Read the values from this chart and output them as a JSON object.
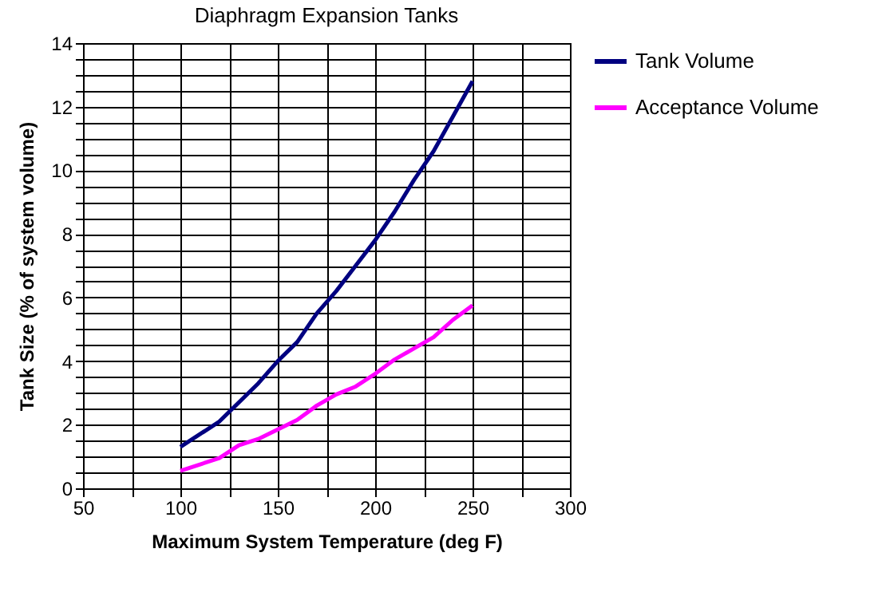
{
  "chart_data": {
    "type": "line",
    "title": "Diaphragm Expansion Tanks",
    "xlabel": "Maximum System Temperature (deg F)",
    "ylabel": "Tank Size (%  of system volume)",
    "series": [
      {
        "name": "Tank Volume",
        "color": "#000080",
        "x": [
          100,
          120,
          140,
          150,
          160,
          170,
          180,
          190,
          200,
          210,
          220,
          230,
          240,
          250
        ],
        "values": [
          1.3,
          2.1,
          3.3,
          4.0,
          4.6,
          5.5,
          6.2,
          7.0,
          7.8,
          8.7,
          9.7,
          10.6,
          11.7,
          12.8
        ]
      },
      {
        "name": "Acceptance Volume",
        "color": "#ff00ff",
        "x": [
          100,
          120,
          130,
          140,
          150,
          160,
          170,
          180,
          190,
          200,
          210,
          220,
          230,
          240,
          250
        ],
        "values": [
          0.55,
          0.95,
          1.35,
          1.55,
          1.85,
          2.15,
          2.6,
          2.95,
          3.2,
          3.6,
          4.05,
          4.4,
          4.75,
          5.3,
          5.75
        ]
      }
    ],
    "xlim": [
      50,
      300
    ],
    "xticks": [
      50,
      {
        "value": 75,
        "label": null
      },
      100,
      {
        "value": 125,
        "label": null
      },
      150,
      {
        "value": 175,
        "label": null
      },
      200,
      {
        "value": 225,
        "label": null
      },
      250,
      {
        "value": 275,
        "label": null
      },
      300
    ],
    "ylim": [
      0,
      14
    ],
    "yticks": [
      0,
      {
        "value": 0.5,
        "label": null
      },
      {
        "value": 1,
        "label": null
      },
      {
        "value": 1.5,
        "label": null
      },
      2,
      {
        "value": 2.5,
        "label": null
      },
      {
        "value": 3,
        "label": null
      },
      {
        "value": 3.5,
        "label": null
      },
      4,
      {
        "value": 4.5,
        "label": null
      },
      {
        "value": 5,
        "label": null
      },
      {
        "value": 5.5,
        "label": null
      },
      6,
      {
        "value": 6.5,
        "label": null
      },
      {
        "value": 7,
        "label": null
      },
      {
        "value": 7.5,
        "label": null
      },
      8,
      {
        "value": 8.5,
        "label": null
      },
      {
        "value": 9,
        "label": null
      },
      {
        "value": 9.5,
        "label": null
      },
      10,
      {
        "value": 10.5,
        "label": null
      },
      {
        "value": 11,
        "label": null
      },
      {
        "value": 11.5,
        "label": null
      },
      12,
      {
        "value": 12.5,
        "label": null
      },
      {
        "value": 13,
        "label": null
      },
      {
        "value": 13.5,
        "label": null
      },
      14
    ],
    "grid": true,
    "legend": "right",
    "marker": "none",
    "line_style": "solid"
  }
}
